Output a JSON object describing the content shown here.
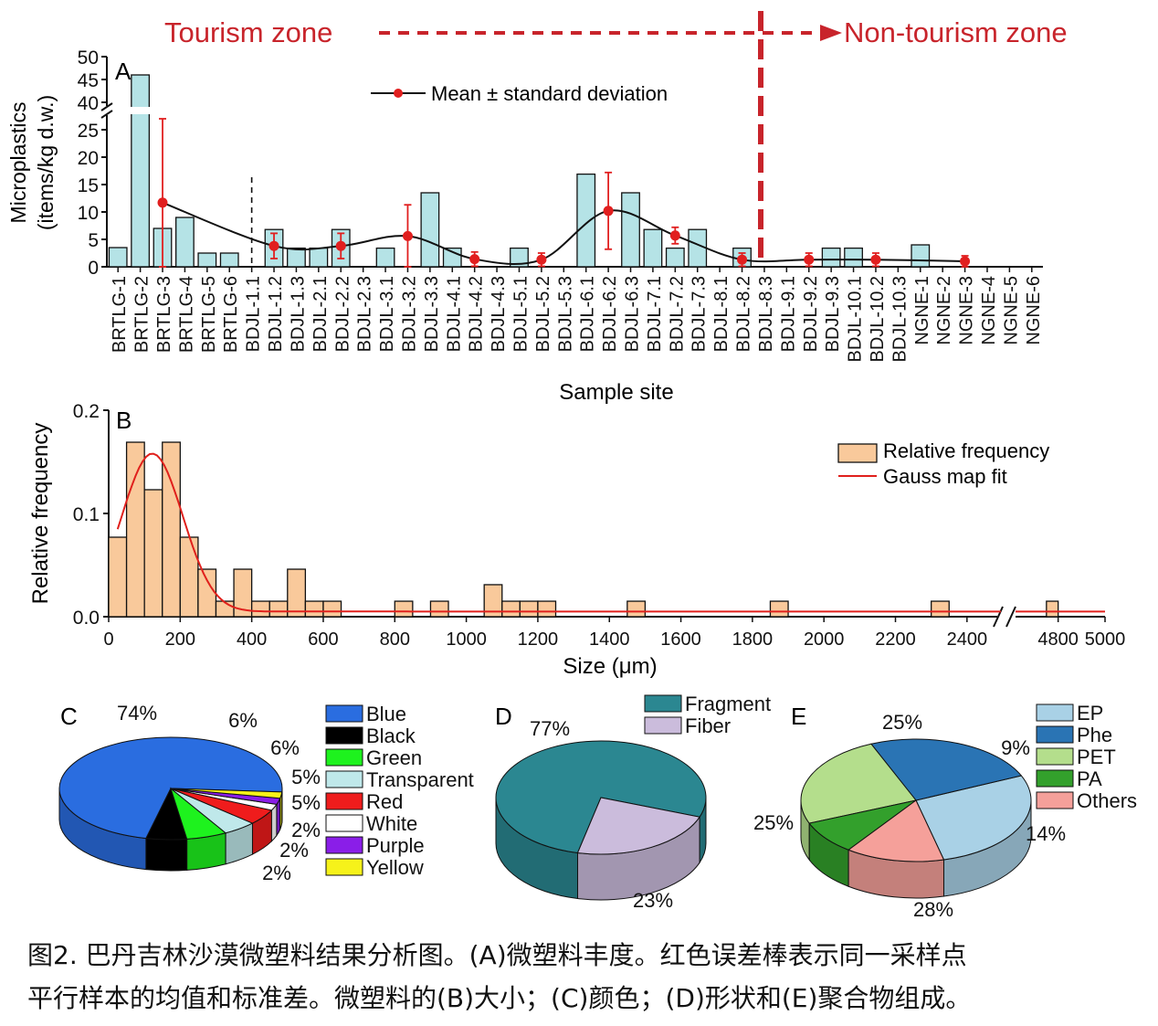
{
  "header": {
    "tourism_zone": "Tourism zone",
    "non_tourism_zone": "Non-tourism zone"
  },
  "colors": {
    "zone_red": "#c8242b",
    "bar_fill_a": "#b5e3e6",
    "bar_fill_b": "#f9c99b",
    "mean_point": "#e11f1f",
    "gauss_line": "#e0201c"
  },
  "chart_data": [
    {
      "id": "A",
      "panel_label": "A",
      "type": "bar",
      "xlabel": "Sample site",
      "ylabel_line1": "Microplastics",
      "ylabel_line2": "(items/kg d.w.)",
      "axis_break": true,
      "yticks_lower": [
        "0",
        "5",
        "10",
        "15",
        "20",
        "25"
      ],
      "yticks_upper": [
        "40",
        "45",
        "50"
      ],
      "legend": "Mean ± standard deviation",
      "categories": [
        "BRTLG-1",
        "BRTLG-2",
        "BRTLG-3",
        "BRTLG-4",
        "BRTLG-5",
        "BRTLG-6",
        "BDJL-1.1",
        "BDJL-1.2",
        "BDJL-1.3",
        "BDJL-2.1",
        "BDJL-2.2",
        "BDJL-2.3",
        "BDJL-3.1",
        "BDJL-3.2",
        "BDJL-3.3",
        "BDJL-4.1",
        "BDJL-4.2",
        "BDJL-4.3",
        "BDJL-5.1",
        "BDJL-5.2",
        "BDJL-5.3",
        "BDJL-6.1",
        "BDJL-6.2",
        "BDJL-6.3",
        "BDJL-7.1",
        "BDJL-7.2",
        "BDJL-7.3",
        "BDJL-8.1",
        "BDJL-8.2",
        "BDJL-8.3",
        "BDJL-9.1",
        "BDJL-9.2",
        "BDJL-9.3",
        "BDJL-10.1",
        "BDJL-10.2",
        "BDJL-10.3",
        "NGNE-1",
        "NGNE-2",
        "NGNE-3",
        "NGNE-4",
        "NGNE-5",
        "NGNE-6"
      ],
      "values": [
        3.5,
        46,
        7,
        9,
        2.5,
        2.5,
        0,
        6.8,
        3.4,
        3.4,
        6.8,
        0,
        3.4,
        0,
        13.5,
        3.4,
        0,
        0,
        3.4,
        0,
        0,
        16.9,
        0,
        13.5,
        6.8,
        3.4,
        6.8,
        0,
        3.4,
        0,
        0,
        0,
        3.4,
        3.4,
        0,
        0,
        4,
        0,
        0,
        0,
        0,
        0
      ],
      "mean_sd": [
        {
          "site": "BRTLG-3",
          "mean": 11.7,
          "sd": 15.3
        },
        {
          "site": "BDJL-1.2",
          "mean": 3.8,
          "sd": 2.3
        },
        {
          "site": "BDJL-2.2",
          "mean": 3.8,
          "sd": 2.3
        },
        {
          "site": "BDJL-3.2",
          "mean": 5.6,
          "sd": 5.7
        },
        {
          "site": "BDJL-4.2",
          "mean": 1.4,
          "sd": 1.3
        },
        {
          "site": "BDJL-5.2",
          "mean": 1.3,
          "sd": 1.2
        },
        {
          "site": "BDJL-6.2",
          "mean": 10.2,
          "sd": 7.0
        },
        {
          "site": "BDJL-7.2",
          "mean": 5.7,
          "sd": 1.5
        },
        {
          "site": "BDJL-8.2",
          "mean": 1.3,
          "sd": 1.2
        },
        {
          "site": "BDJL-9.2",
          "mean": 1.3,
          "sd": 1.2
        },
        {
          "site": "BDJL-10.2",
          "mean": 1.3,
          "sd": 1.2
        },
        {
          "site": "NGNE-3",
          "mean": 1.0,
          "sd": 1.0
        }
      ]
    },
    {
      "id": "B",
      "panel_label": "B",
      "type": "bar",
      "xlabel": "Size (μm)",
      "ylabel": "Relative frequency",
      "ylim": [
        0,
        0.2
      ],
      "yticks": [
        "0.0",
        "0.1",
        "0.2"
      ],
      "xticks": [
        "0",
        "200",
        "400",
        "600",
        "800",
        "1000",
        "1200",
        "1400",
        "1600",
        "1800",
        "2000",
        "2200",
        "2400",
        "4800",
        "5000"
      ],
      "legend": [
        "Relative frequency",
        "Gauss map fit"
      ],
      "bin_width": 50,
      "bins": [
        {
          "x": 25,
          "y": 0.077
        },
        {
          "x": 75,
          "y": 0.169
        },
        {
          "x": 125,
          "y": 0.123
        },
        {
          "x": 175,
          "y": 0.169
        },
        {
          "x": 225,
          "y": 0.077
        },
        {
          "x": 275,
          "y": 0.046
        },
        {
          "x": 325,
          "y": 0.015
        },
        {
          "x": 375,
          "y": 0.046
        },
        {
          "x": 425,
          "y": 0.015
        },
        {
          "x": 475,
          "y": 0.015
        },
        {
          "x": 525,
          "y": 0.046
        },
        {
          "x": 575,
          "y": 0.015
        },
        {
          "x": 625,
          "y": 0.015
        },
        {
          "x": 825,
          "y": 0.015
        },
        {
          "x": 925,
          "y": 0.015
        },
        {
          "x": 1075,
          "y": 0.031
        },
        {
          "x": 1125,
          "y": 0.015
        },
        {
          "x": 1175,
          "y": 0.015
        },
        {
          "x": 1225,
          "y": 0.015
        },
        {
          "x": 1475,
          "y": 0.015
        },
        {
          "x": 1875,
          "y": 0.015
        },
        {
          "x": 2325,
          "y": 0.015
        },
        {
          "x": 4775,
          "y": 0.015
        }
      ],
      "gauss_fit": {
        "baseline": 0.005,
        "center": 122,
        "amplitude": 0.153,
        "sigma": 85
      }
    },
    {
      "id": "C",
      "panel_label": "C",
      "type": "pie",
      "labels": [
        "Blue",
        "Black",
        "Green",
        "Transparent",
        "Red",
        "White",
        "Purple",
        "Yellow"
      ],
      "values": [
        74,
        6,
        6,
        5,
        5,
        2,
        2,
        2
      ],
      "value_labels": [
        "74%",
        "6%",
        "6%",
        "5%",
        "5%",
        "2%",
        "2%",
        "2%"
      ],
      "colors": [
        "#2a6de0",
        "#000000",
        "#1ef21e",
        "#bfe8ea",
        "#ef1c1c",
        "#ffffff",
        "#8a1ee8",
        "#f6f21a"
      ]
    },
    {
      "id": "D",
      "panel_label": "D",
      "type": "pie",
      "labels": [
        "Fragment",
        "Fiber"
      ],
      "values": [
        77,
        23
      ],
      "value_labels": [
        "77%",
        "23%"
      ],
      "colors": [
        "#2b8791",
        "#cbbcdc"
      ]
    },
    {
      "id": "E",
      "panel_label": "E",
      "type": "pie",
      "labels": [
        "EP",
        "Phe",
        "PET",
        "PA",
        "Others"
      ],
      "values": [
        28,
        25,
        25,
        9,
        14
      ],
      "value_labels": [
        "28%",
        "25%",
        "25%",
        "9%",
        "14%"
      ],
      "colors": [
        "#a9d1e6",
        "#2a74b4",
        "#b4de8c",
        "#33a02c",
        "#f5a09a"
      ]
    }
  ],
  "caption": {
    "line1": "图2. 巴丹吉林沙漠微塑料结果分析图。(A)微塑料丰度。红色误差棒表示同一采样点",
    "line2": "平行样本的均值和标准差。微塑料的(B)大小；(C)颜色；(D)形状和(E)聚合物组成。"
  }
}
